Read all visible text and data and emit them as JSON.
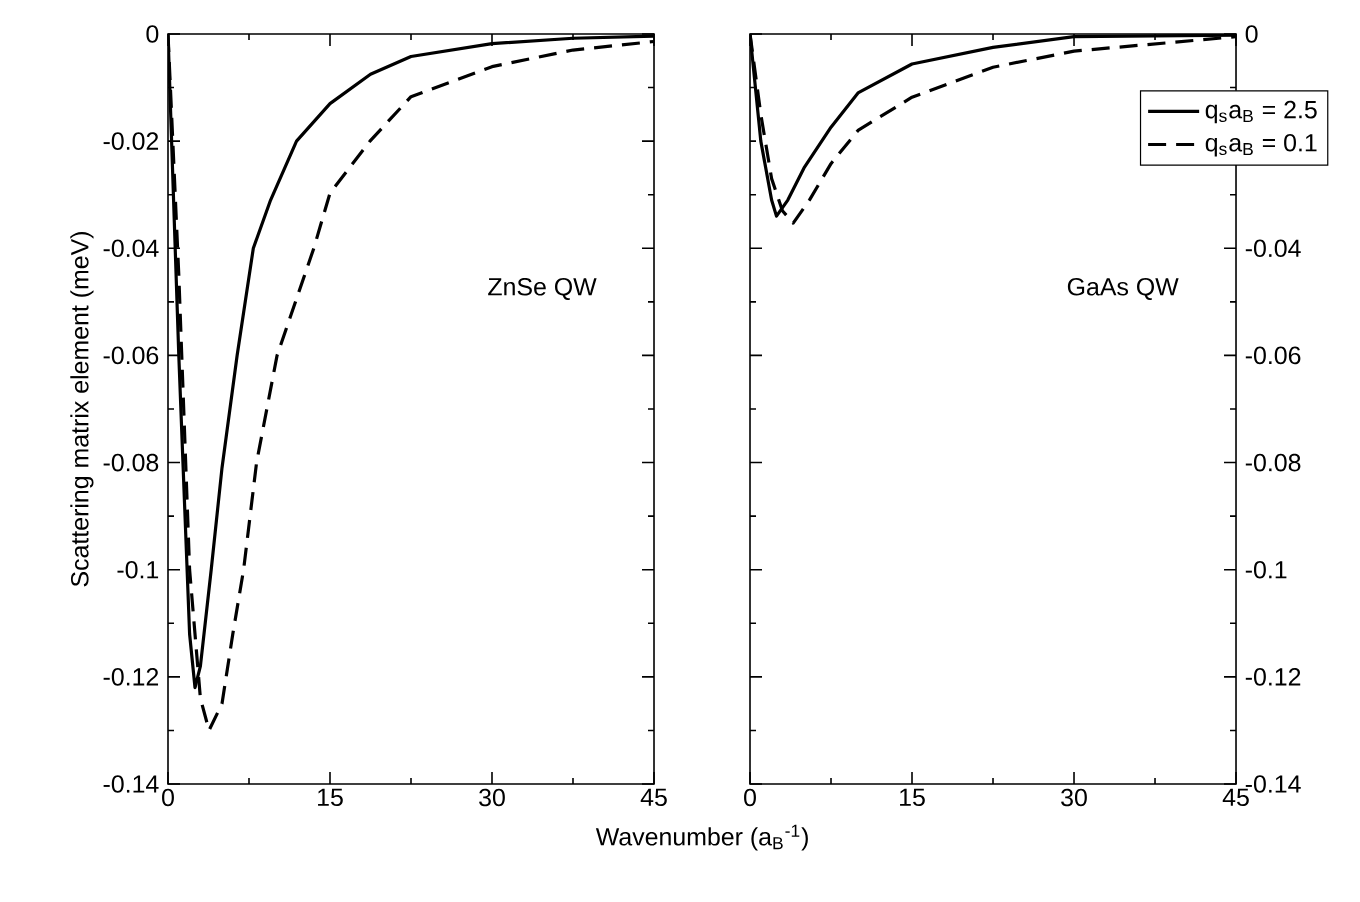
{
  "chart_data": [
    {
      "type": "line",
      "xlabel": "Wavenumber (a$_{B}$$^{-1}$)",
      "ylabel": "Scattering matrix element (meV)",
      "annotations": [
        "ZnSe QW"
      ],
      "xlim": [
        0,
        45
      ],
      "ylim": [
        -0.14,
        0
      ],
      "xticks": [
        0,
        {
          "value": 7.5,
          "label": null
        },
        15,
        {
          "value": 22.5,
          "label": null
        },
        30,
        {
          "value": 37.5,
          "label": null
        },
        45
      ],
      "yticks": [
        -0.14,
        {
          "value": -0.13,
          "label": null
        },
        -0.12,
        {
          "value": -0.11,
          "label": null
        },
        -0.1,
        {
          "value": -0.09,
          "label": null
        },
        -0.08,
        {
          "value": -0.07,
          "label": null
        },
        -0.06,
        {
          "value": -0.05,
          "label": null
        },
        -0.04,
        {
          "value": -0.03,
          "label": null
        },
        -0.02,
        {
          "value": -0.01,
          "label": null
        },
        0
      ],
      "series": [
        {
          "color": "#000000",
          "line_style": "solid",
          "x": [
            0,
            1,
            2,
            2.5,
            3,
            4,
            5,
            6.4,
            7.9,
            9.5,
            11.9,
            15,
            18.75,
            22.5,
            30,
            37.5,
            45
          ],
          "values": [
            0,
            -0.06,
            -0.112,
            -0.122,
            -0.118,
            -0.1,
            -0.081,
            -0.06,
            -0.04,
            -0.031,
            -0.02,
            -0.013,
            -0.0075,
            -0.0042,
            -0.0018,
            -0.0008,
            -0.0004
          ]
        },
        {
          "color": "#000000",
          "line_style": "dashed",
          "x": [
            0,
            1,
            2,
            3,
            3.8,
            5,
            6,
            7,
            8.2,
            10.1,
            13.5,
            15,
            18.7,
            22.5,
            30,
            37.5,
            45
          ],
          "values": [
            0,
            -0.045,
            -0.1,
            -0.124,
            -0.13,
            -0.125,
            -0.112,
            -0.1,
            -0.08,
            -0.06,
            -0.04,
            -0.0297,
            -0.02,
            -0.0117,
            -0.0061,
            -0.003,
            -0.0014
          ]
        }
      ]
    },
    {
      "type": "line",
      "annotations": [
        "GaAs QW"
      ],
      "legend": "top right",
      "xlim": [
        0,
        45
      ],
      "ylim": [
        -0.14,
        0
      ],
      "xticks": [
        0,
        {
          "value": 7.5,
          "label": null
        },
        15,
        {
          "value": 22.5,
          "label": null
        },
        30,
        {
          "value": 37.5,
          "label": null
        },
        45
      ],
      "yticks": [
        -0.14,
        {
          "value": -0.13,
          "label": null
        },
        -0.12,
        {
          "value": -0.11,
          "label": null
        },
        -0.1,
        {
          "value": -0.09,
          "label": null
        },
        -0.08,
        {
          "value": -0.07,
          "label": null
        },
        -0.06,
        {
          "value": -0.05,
          "label": null
        },
        -0.04,
        {
          "value": -0.03,
          "label": null
        },
        {
          "value": -0.02,
          "label": null
        },
        {
          "value": -0.01,
          "label": null
        },
        0
      ],
      "series": [
        {
          "name": "q$_{s}$a$_{B}$ = 2.5",
          "color": "#000000",
          "line_style": "solid",
          "x": [
            0,
            1,
            2,
            2.45,
            3.5,
            5,
            7.5,
            10,
            15,
            22.5,
            30,
            45
          ],
          "values": [
            0,
            -0.02,
            -0.031,
            -0.034,
            -0.031,
            -0.025,
            -0.0174,
            -0.011,
            -0.0056,
            -0.0025,
            -0.0005,
            -0.0002
          ]
        },
        {
          "name": "q$_{s}$a$_{B}$ = 0.1",
          "color": "#000000",
          "line_style": "dashed",
          "x": [
            0,
            1,
            2,
            3,
            4,
            5.5,
            7.5,
            10,
            15,
            22.5,
            30,
            45
          ],
          "values": [
            0,
            -0.015,
            -0.027,
            -0.033,
            -0.0353,
            -0.031,
            -0.0242,
            -0.018,
            -0.0118,
            -0.0062,
            -0.0032,
            -0.0005
          ]
        }
      ]
    }
  ]
}
